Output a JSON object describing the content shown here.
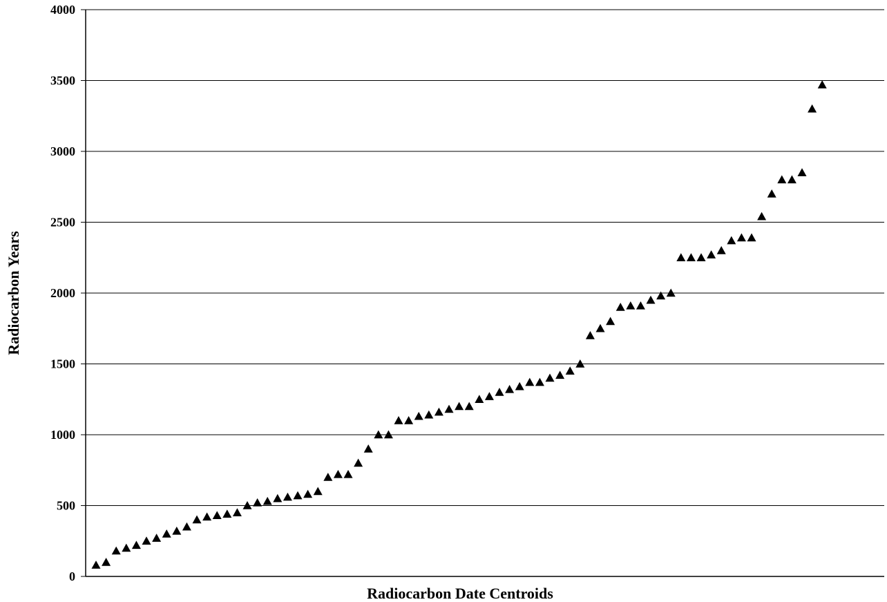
{
  "chart_data": {
    "type": "scatter",
    "title": "",
    "xlabel": "Radiocarbon Date Centroids",
    "ylabel": "Radiocarbon Years",
    "ylim": [
      0,
      4000
    ],
    "yticks": [
      "0",
      "500",
      "1000",
      "1500",
      "2000",
      "2500",
      "3000",
      "3500",
      "4000"
    ],
    "grid": "horizontal",
    "legend": "none",
    "marker": "triangle",
    "marker_color": "#000000",
    "series": [
      {
        "values": [
          80,
          100,
          180,
          200,
          220,
          250,
          270,
          300,
          320,
          350,
          400,
          420,
          430,
          440,
          450,
          500,
          520,
          530,
          550,
          560,
          570,
          580,
          600,
          700,
          720,
          720,
          800,
          900,
          1000,
          1000,
          1100,
          1100,
          1130,
          1140,
          1160,
          1180,
          1200,
          1200,
          1250,
          1270,
          1300,
          1320,
          1340,
          1370,
          1370,
          1400,
          1420,
          1450,
          1500,
          1700,
          1750,
          1800,
          1900,
          1910,
          1910,
          1950,
          1980,
          2000,
          2250,
          2250,
          2250,
          2270,
          2300,
          2370,
          2390,
          2390,
          2540,
          2700,
          2800,
          2800,
          2850,
          3300,
          3470
        ]
      }
    ]
  }
}
